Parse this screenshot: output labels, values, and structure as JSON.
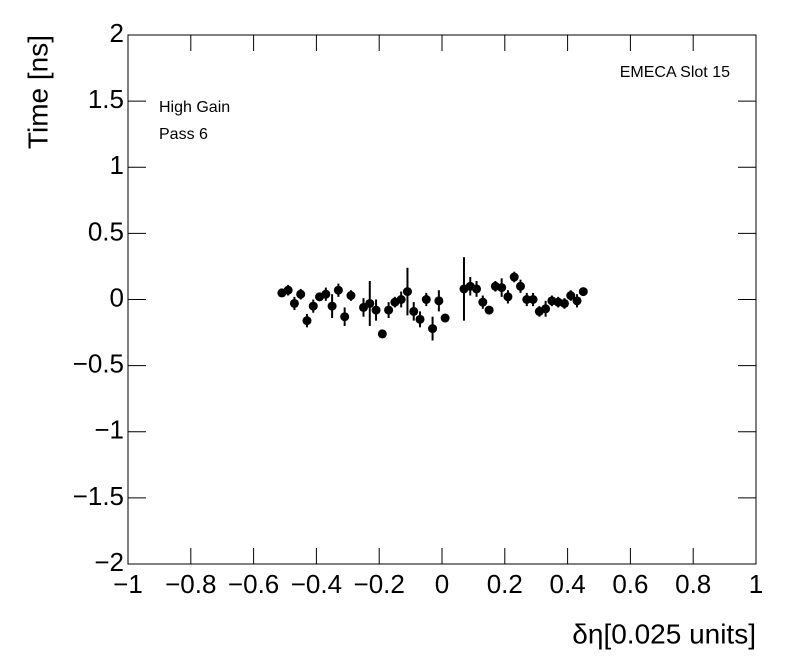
{
  "chart_data": {
    "type": "scatter",
    "x_label": "δη[0.025 units]",
    "y_label": "Time [ns]",
    "annotations": [
      "EMECA Slot 15",
      "High Gain",
      "Pass 6"
    ],
    "color": "#000000",
    "x": [
      -0.51,
      -0.49,
      -0.47,
      -0.45,
      -0.43,
      -0.41,
      -0.39,
      -0.37,
      -0.35,
      -0.33,
      -0.31,
      -0.29,
      -0.25,
      -0.23,
      -0.21,
      -0.19,
      -0.17,
      -0.15,
      -0.13,
      -0.11,
      -0.09,
      -0.07,
      -0.05,
      -0.03,
      -0.01,
      0.01,
      0.07,
      0.09,
      0.11,
      0.13,
      0.15,
      0.17,
      0.19,
      0.21,
      0.23,
      0.25,
      0.27,
      0.29,
      0.31,
      0.33,
      0.35,
      0.37,
      0.39,
      0.41,
      0.43,
      0.45
    ],
    "values": [
      0.05,
      0.07,
      -0.03,
      0.04,
      -0.16,
      -0.05,
      0.02,
      0.04,
      -0.05,
      0.07,
      -0.13,
      0.03,
      -0.06,
      -0.03,
      -0.08,
      -0.26,
      -0.08,
      -0.02,
      0,
      0.06,
      -0.09,
      -0.15,
      0,
      -0.22,
      -0.01,
      -0.14,
      0.08,
      0.1,
      0.08,
      -0.02,
      -0.08,
      0.1,
      0.09,
      0.02,
      0.17,
      0.1,
      0,
      0,
      -0.09,
      -0.07,
      -0.01,
      -0.02,
      -0.03,
      0.03,
      -0.01,
      0.06
    ],
    "errors": [
      0.03,
      0.04,
      0.05,
      0.04,
      0.05,
      0.05,
      0.03,
      0.05,
      0.09,
      0.05,
      0.07,
      0.04,
      0.07,
      0.17,
      0.08,
      0.02,
      0.06,
      0.04,
      0.06,
      0.18,
      0.07,
      0.06,
      0.05,
      0.09,
      0.08,
      0.03,
      0.24,
      0.07,
      0.06,
      0.05,
      0.03,
      0.04,
      0.07,
      0.05,
      0.04,
      0.05,
      0.05,
      0.05,
      0.04,
      0.06,
      0.04,
      0.04,
      0.04,
      0.04,
      0.05,
      0.03
    ],
    "xlim": [
      -1,
      1
    ],
    "xticks": [
      {
        "value": -1,
        "label": "−1"
      },
      {
        "value": -0.8,
        "label": "−0.8"
      },
      {
        "value": -0.6,
        "label": "−0.6"
      },
      {
        "value": -0.4,
        "label": "−0.4"
      },
      {
        "value": -0.2,
        "label": "−0.2"
      },
      0,
      0.2,
      0.4,
      0.6,
      0.8,
      1
    ],
    "ylim": [
      -2,
      2
    ],
    "yticks": [
      {
        "value": -2,
        "label": "−2"
      },
      {
        "value": -1.5,
        "label": "−1.5"
      },
      {
        "value": -1,
        "label": "−1"
      },
      {
        "value": -0.5,
        "label": "−0.5"
      },
      0,
      0.5,
      1,
      1.5,
      2
    ]
  }
}
